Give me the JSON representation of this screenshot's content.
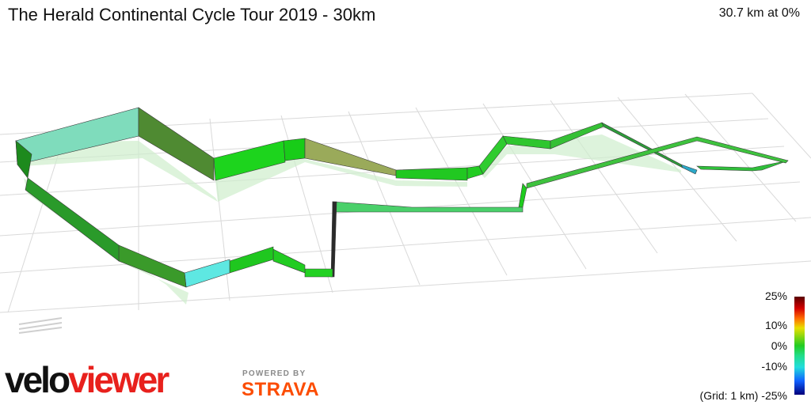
{
  "header": {
    "title": "The Herald Continental Cycle Tour 2019 - 30km",
    "stats": "30.7 km at 0%"
  },
  "legend": {
    "labels": [
      "25%",
      "10%",
      "0%",
      "-10%",
      "(Grid: 1 km) -25%"
    ]
  },
  "branding": {
    "logo_part1": "velo",
    "logo_part2": "viewer",
    "powered_by": "POWERED BY",
    "strava": "STRAVA"
  }
}
